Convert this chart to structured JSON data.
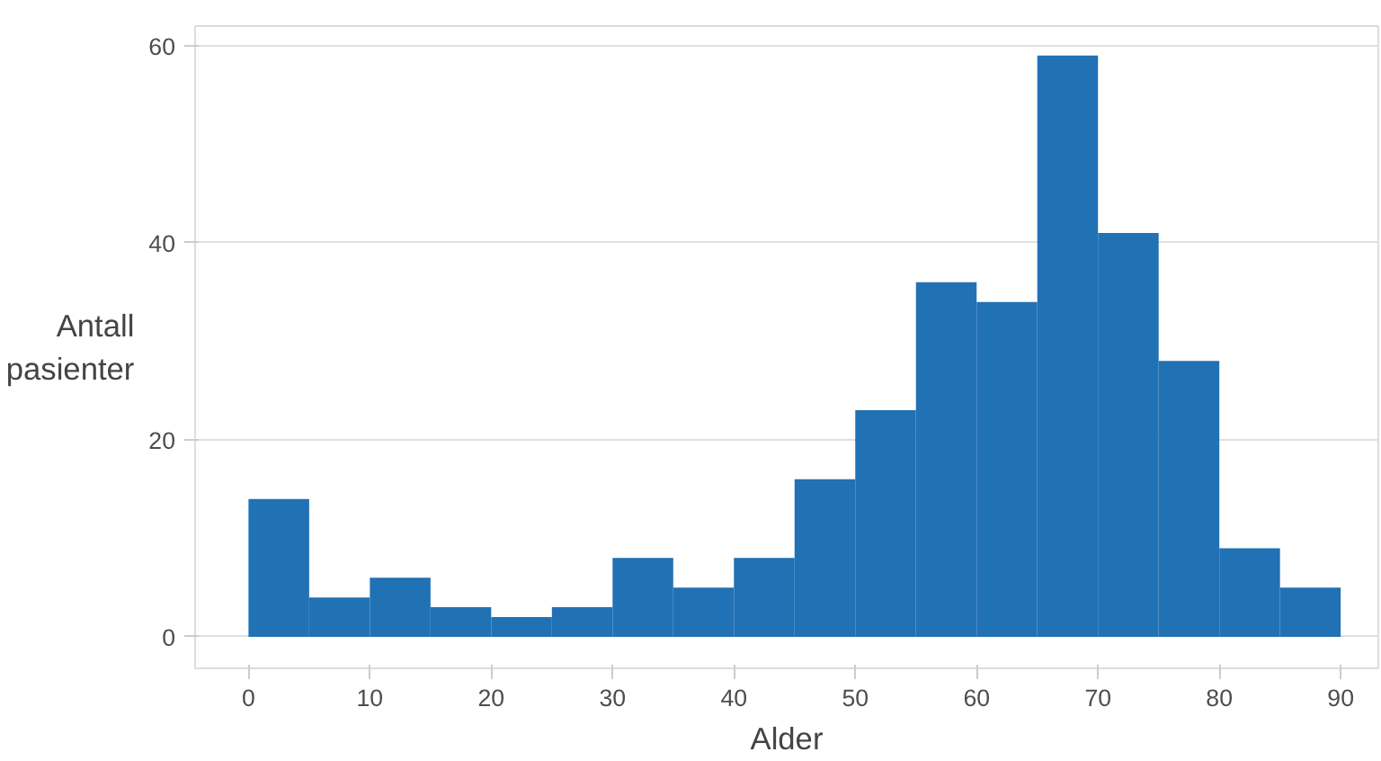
{
  "chart_data": {
    "type": "histogram",
    "xlabel": "Alder",
    "ylabel": "Antall\npasienter",
    "color": "#2171b5",
    "bins": [
      0,
      5,
      10,
      15,
      20,
      25,
      30,
      35,
      40,
      45,
      50,
      55,
      60,
      65,
      70,
      75,
      80,
      85,
      90
    ],
    "values": [
      14,
      4,
      6,
      3,
      2,
      3,
      8,
      5,
      8,
      16,
      23,
      36,
      34,
      59,
      41,
      28,
      9,
      5
    ],
    "xlim": [
      -4.4,
      93.1
    ],
    "xticks": [
      0,
      10,
      20,
      30,
      40,
      50,
      60,
      70,
      80,
      90
    ],
    "ylim": [
      -3.2,
      62
    ],
    "yticks": [
      0,
      20,
      40,
      60
    ],
    "grid": "y"
  }
}
